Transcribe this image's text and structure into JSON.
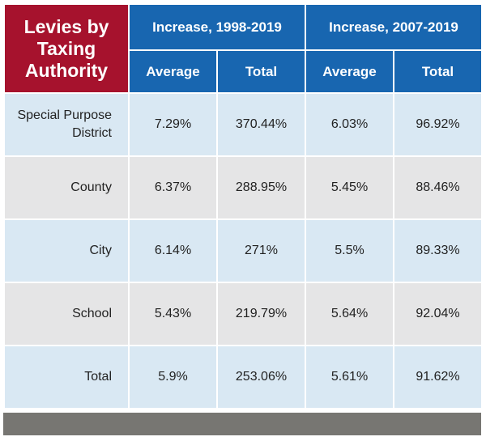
{
  "table": {
    "title": "Levies by Taxing Authority",
    "groups": [
      {
        "label": "Increase, 1998-2019",
        "average_label": "Average",
        "total_label": "Total"
      },
      {
        "label": "Increase, 2007-2019",
        "average_label": "Average",
        "total_label": "Total"
      }
    ],
    "rows": [
      {
        "label": "Special Purpose District",
        "avg_1998_2019": "7.29%",
        "total_1998_2019": "370.44%",
        "avg_2007_2019": "6.03%",
        "total_2007_2019": "96.92%"
      },
      {
        "label": "County",
        "avg_1998_2019": "6.37%",
        "total_1998_2019": "288.95%",
        "avg_2007_2019": "5.45%",
        "total_2007_2019": "88.46%"
      },
      {
        "label": "City",
        "avg_1998_2019": "6.14%",
        "total_1998_2019": "271%",
        "avg_2007_2019": "5.5%",
        "total_2007_2019": "89.33%"
      },
      {
        "label": "School",
        "avg_1998_2019": "5.43%",
        "total_1998_2019": "219.79%",
        "avg_2007_2019": "5.64%",
        "total_2007_2019": "92.04%"
      },
      {
        "label": "Total",
        "avg_1998_2019": "5.9%",
        "total_1998_2019": "253.06%",
        "avg_2007_2019": "5.61%",
        "total_2007_2019": "91.62%"
      }
    ]
  },
  "colors": {
    "title_bg": "#a6122d",
    "header_bg": "#1866b0",
    "row_blue": "#d9e8f3",
    "row_gray": "#e5e5e6",
    "footer_bar": "#777672"
  }
}
